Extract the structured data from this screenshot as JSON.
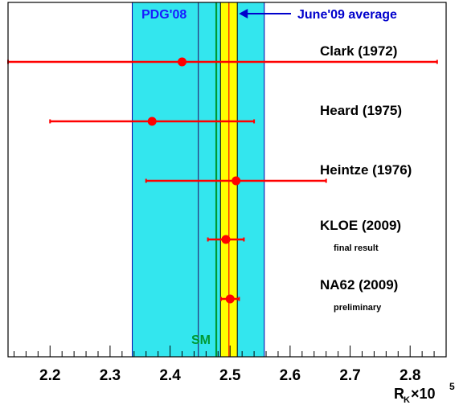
{
  "chart_data": {
    "type": "scatter",
    "title": "",
    "xlabel": "R_K×10^5",
    "xlabel_parts": {
      "base": "R",
      "sub": "K",
      "times": "×10",
      "sup": "5"
    },
    "ylabel": "",
    "xlim": [
      2.13,
      2.86
    ],
    "x_ticks": [
      2.2,
      2.3,
      2.4,
      2.5,
      2.6,
      2.7,
      2.8
    ],
    "x_tick_labels": [
      "2.2",
      "2.3",
      "2.4",
      "2.5",
      "2.6",
      "2.7",
      "2.8"
    ],
    "grid": false,
    "bands": [
      {
        "label": "PDG'08",
        "center": 2.447,
        "low": 2.337,
        "high": 2.557,
        "color": "#33e6ee"
      },
      {
        "label": "June'09 average",
        "center": 2.498,
        "low": 2.484,
        "high": 2.512,
        "color": "#ffff00"
      }
    ],
    "sm_line": {
      "label": "SM",
      "value": 2.477,
      "color": "#009933"
    },
    "measurements": [
      {
        "label": "Clark (1972)",
        "note": "",
        "value": 2.42,
        "err_low": 2.13,
        "err_high": 2.845
      },
      {
        "label": "Heard (1975)",
        "note": "",
        "value": 2.37,
        "err_low": 2.2,
        "err_high": 2.54
      },
      {
        "label": "Heintze (1976)",
        "note": "",
        "value": 2.51,
        "err_low": 2.36,
        "err_high": 2.66
      },
      {
        "label": "KLOE (2009)",
        "note": "final result",
        "value": 2.493,
        "err_low": 2.463,
        "err_high": 2.523
      },
      {
        "label": "NA62 (2009)",
        "note": "preliminary",
        "value": 2.5,
        "err_low": 2.485,
        "err_high": 2.515
      }
    ],
    "colors": {
      "point": "#ff0000",
      "pdg_label": "#1a1aff",
      "average_label": "#0000cc",
      "sm_label": "#009933",
      "frame": "#000000"
    }
  }
}
